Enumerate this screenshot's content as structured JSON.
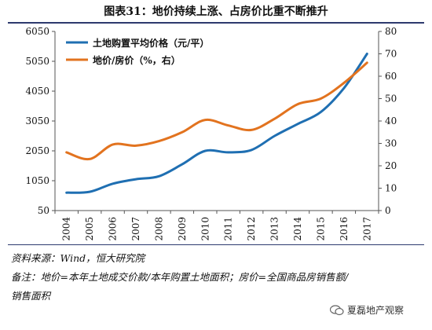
{
  "title": "图表31：地价持续上涨、占房价比重不断推升",
  "notes": {
    "source": "资料来源：Wind，恒大研究院",
    "remark_line1": "备注：地价=本年土地成交价款/本年购置土地面积；房价=全国商品房销售额/",
    "remark_line2": "销售面积"
  },
  "watermark": {
    "text": "夏磊地产观察",
    "icon": "wechat-icon"
  },
  "colors": {
    "series1": "#1f6fb2",
    "series2": "#e2731f",
    "axis": "#555555"
  },
  "chart_data": {
    "type": "line",
    "categories": [
      "2004",
      "2005",
      "2006",
      "2007",
      "2008",
      "2009",
      "2010",
      "2011",
      "2012",
      "2013",
      "2014",
      "2015",
      "2016",
      "2017"
    ],
    "series": [
      {
        "name": "土地购置平均价格（元/平）",
        "axis": "left",
        "values": [
          650,
          680,
          950,
          1100,
          1200,
          1600,
          2050,
          2000,
          2080,
          2550,
          2950,
          3350,
          4150,
          5300
        ]
      },
      {
        "name": "地价/房价（%，右）",
        "axis": "right",
        "values": [
          26,
          23,
          29.5,
          29,
          31,
          35,
          40.5,
          38,
          36,
          41,
          47.5,
          50,
          57,
          66
        ]
      }
    ],
    "y_left": {
      "ticks": [
        50,
        1050,
        2050,
        3050,
        4050,
        5050,
        6050
      ],
      "range": [
        50,
        6050
      ]
    },
    "y_right": {
      "ticks": [
        0,
        10,
        20,
        30,
        40,
        50,
        60,
        70,
        80
      ],
      "range": [
        0,
        80
      ]
    },
    "legend_position": "top-left",
    "grid": false
  }
}
